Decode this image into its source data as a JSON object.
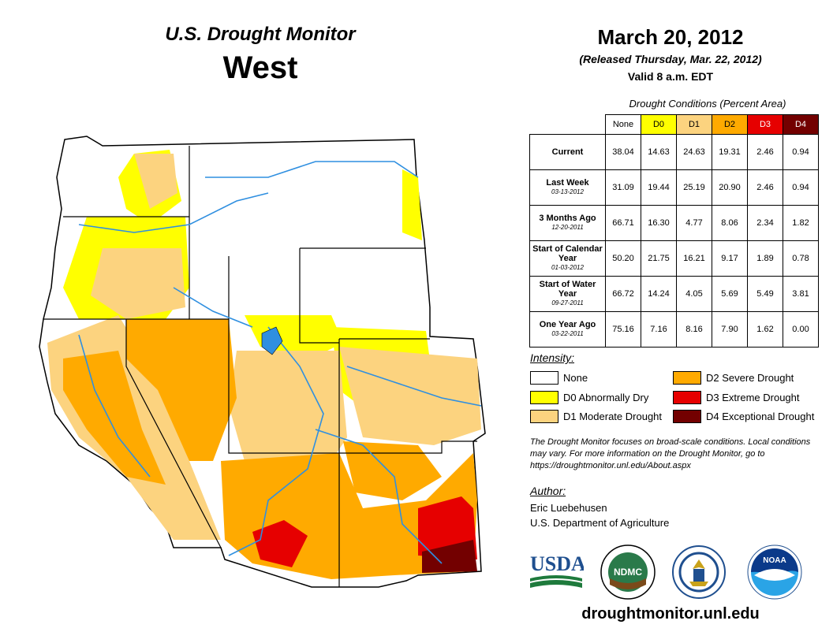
{
  "header": {
    "product": "U.S. Drought Monitor",
    "region": "West",
    "date": "March 20, 2012",
    "released": "(Released Thursday, Mar. 22, 2012)",
    "valid": "Valid 8 a.m. EDT"
  },
  "table": {
    "caption": "Drought Conditions (Percent Area)",
    "columns": [
      "None",
      "D0",
      "D1",
      "D2",
      "D3",
      "D4"
    ],
    "column_colors": [
      "#ffffff",
      "#ffff00",
      "#fcd37f",
      "#ffaa00",
      "#e60000",
      "#730000"
    ],
    "rows": [
      {
        "label": "Current",
        "date": "",
        "values": [
          "38.04",
          "14.63",
          "24.63",
          "19.31",
          "2.46",
          "0.94"
        ]
      },
      {
        "label": "Last Week",
        "date": "03-13-2012",
        "values": [
          "31.09",
          "19.44",
          "25.19",
          "20.90",
          "2.46",
          "0.94"
        ]
      },
      {
        "label": "3 Months Ago",
        "date": "12-20-2011",
        "values": [
          "66.71",
          "16.30",
          "4.77",
          "8.06",
          "2.34",
          "1.82"
        ]
      },
      {
        "label": "Start of Calendar Year",
        "date": "01-03-2012",
        "values": [
          "50.20",
          "21.75",
          "16.21",
          "9.17",
          "1.89",
          "0.78"
        ]
      },
      {
        "label": "Start of Water Year",
        "date": "09-27-2011",
        "values": [
          "66.72",
          "14.24",
          "4.05",
          "5.69",
          "5.49",
          "3.81"
        ]
      },
      {
        "label": "One Year Ago",
        "date": "03-22-2011",
        "values": [
          "75.16",
          "7.16",
          "8.16",
          "7.90",
          "1.62",
          "0.00"
        ]
      }
    ]
  },
  "legend": {
    "title": "Intensity:",
    "items": [
      {
        "label": "None",
        "color": "#ffffff"
      },
      {
        "label": "D0 Abnormally Dry",
        "color": "#ffff00"
      },
      {
        "label": "D1 Moderate Drought",
        "color": "#fcd37f"
      },
      {
        "label": "D2 Severe Drought",
        "color": "#ffaa00"
      },
      {
        "label": "D3 Extreme Drought",
        "color": "#e60000"
      },
      {
        "label": "D4 Exceptional Drought",
        "color": "#730000"
      }
    ]
  },
  "note": "The Drought Monitor focuses on broad-scale conditions. Local conditions may vary. For more information on the Drought Monitor, go to https://droughtmonitor.unl.edu/About.aspx",
  "author": {
    "title": "Author:",
    "name": "Eric Luebehusen",
    "org": "U.S. Department of Agriculture"
  },
  "logos": {
    "usda": "USDA",
    "ndmc": "NDMC",
    "noaa": "NOAA"
  },
  "site_url": "droughtmonitor.unl.edu"
}
